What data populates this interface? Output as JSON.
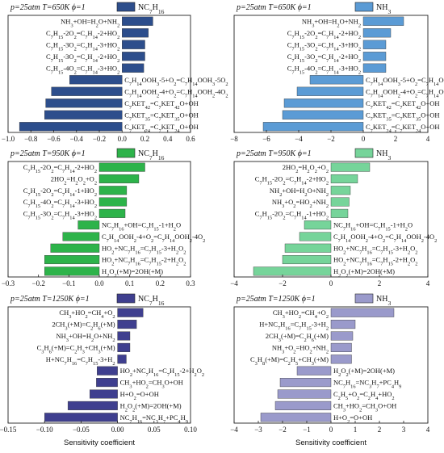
{
  "x_axis_label": "Sensitivity coefficient",
  "chart_data": [
    {
      "type": "bar",
      "orientation": "horizontal",
      "header": "p=25atm  T=650K  ϕ=1",
      "legend": "NC7H16",
      "color": "#2d4e8c",
      "xlim": [
        -1.0,
        0.6
      ],
      "xticks": [
        "-1.0",
        "-0.8",
        "-0.6",
        "-0.4",
        "-0.2",
        "0.0",
        "0.2",
        "0.4",
        "0.6"
      ],
      "xlabel": "",
      "categories": [
        "NH3+OH=H2O+NH2",
        "C7H15-2O2=C7H14-2+HO2",
        "C7H15-3O2=C7H14-3+HO2",
        "C7H15-3O2=C7H14-2+HO2",
        "C7H15-4O2=C7H14-3+HO2",
        "C7H14OOH3-5+O2=C7H14OOH3-5O2",
        "C7H14OOH2-4+O2=C7H14OOH2-4O2",
        "C7KET42=C7KET42O+OH",
        "C7KET35=C7KET35O+OH",
        "C7KET24=C7KET24O+OH"
      ],
      "values": [
        0.27,
        0.23,
        0.2,
        0.2,
        0.19,
        -0.46,
        -0.62,
        -0.67,
        -0.68,
        -0.9
      ]
    },
    {
      "type": "bar",
      "orientation": "horizontal",
      "header": "p=25atm  T=650K  ϕ=1",
      "legend": "NH3",
      "color": "#5b9bd5",
      "xlim": [
        -8,
        4
      ],
      "xticks": [
        "-8",
        "-6",
        "-4",
        "-2",
        "0",
        "2",
        "4"
      ],
      "xlabel": "",
      "categories": [
        "NH3+OH=H2O+NH2",
        "C7H15-2O2=C7H14-2+HO2",
        "C7H15-3O2=C7H14-3+HO2",
        "C7H15-3O2=C7H14-2+HO2",
        "C7H15-4O2=C7H14-3+HO2",
        "C7H14OOH3-5+O2=C7H14OOH3-5O2",
        "C7H14OOH2-4+O2=C7H14OOH2-4O2",
        "C7KET42=C7KET42O+OH",
        "C7KET35=C7KET35O+OH",
        "C7KET24=C7KET24O+OH"
      ],
      "values": [
        2.5,
        1.7,
        1.4,
        1.4,
        1.4,
        -3.3,
        -4.1,
        -4.9,
        -5.0,
        -6.2
      ]
    },
    {
      "type": "bar",
      "orientation": "horizontal",
      "header": "p=25atm  T=950K  ϕ=1",
      "legend": "NC7H16",
      "color": "#2db34a",
      "xlim": [
        -0.3,
        0.3
      ],
      "xticks": [
        "-0.3",
        "-0.2",
        "-0.1",
        "0.0",
        "0.1",
        "0.2",
        "0.3"
      ],
      "xlabel": "",
      "categories": [
        "C7H15-2O2=C7H14-2+HO2",
        "2HO2=H2O2+O2",
        "C7H15-2O2=C7H14-1+HO2",
        "C7H15-4O2=C7H14-3+HO2",
        "C7H15-3O2=C7H14-3+HO2",
        "NC7H16+OH=C7H15-1+H2O",
        "C7H14OOH2-4+O2=C7H14OOH2-4O2",
        "HO2+NC7H16=C7H15-3+H2O2",
        "HO2+NC7H16=C7H15-2+H2O2",
        "H2O2(+M)=2OH(+M)"
      ],
      "values": [
        0.15,
        0.13,
        0.09,
        0.09,
        0.085,
        -0.07,
        -0.12,
        -0.16,
        -0.18,
        -0.18
      ]
    },
    {
      "type": "bar",
      "orientation": "horizontal",
      "header": "p=25atm  T=950K  ϕ=1",
      "legend": "NH3",
      "color": "#76d49a",
      "xlim": [
        -4,
        4
      ],
      "xticks": [
        "-4",
        "-2",
        "0",
        "2",
        "4"
      ],
      "xlabel": "",
      "categories": [
        "2HO2=H2O2+O2",
        "C7H15-2O2=C7H14-2+HO2",
        "NH2+OH=H2O+NH2",
        "NH3+O2=HO2+NH2",
        "C7H15-2O2=C7H14-1+HO2",
        "NC7H16+OH=C7H15-1+H2O",
        "C7H14OOH2-4+O2=C7H14OOH2-4O2",
        "HO2+NC7H16=C7H15-3+H2O2",
        "HO2+NC7H16=C7H15-2+H2O2",
        "H2O2(+M)=2OH(+M)"
      ],
      "values": [
        1.6,
        1.1,
        0.8,
        0.75,
        0.7,
        -1.1,
        -1.3,
        -1.9,
        -2.0,
        -3.2
      ]
    },
    {
      "type": "bar",
      "orientation": "horizontal",
      "header": "p=25atm  T=1250K  ϕ=1",
      "legend": "NC7H16",
      "color": "#3f3f8f",
      "xlim": [
        -0.15,
        0.1
      ],
      "xticks": [
        "-0.15",
        "-0.10",
        "-0.05",
        "0.00",
        "0.05",
        "0.10"
      ],
      "xlabel": "Sensitivity coefficient",
      "categories": [
        "CH3+HO2=CH4+O2",
        "2CH3(+M)=C2H6(+M)",
        "NH3+OH=H2O+NH2",
        "C3H6(+M)=C2H3+CH3(+M)",
        "H+NC7H16=C7H15-3+H2",
        "HO2+NC7H16=C7H15-2+H2O2",
        "CH3+HO2=CH3O+OH",
        "H+O2=O+OH",
        "H2O2(+M)=2OH(+M)",
        "NC7H16=NC3H7+PC4H9"
      ],
      "values": [
        0.035,
        0.026,
        0.017,
        0.017,
        0.012,
        -0.028,
        -0.029,
        -0.038,
        -0.068,
        -0.1
      ]
    },
    {
      "type": "bar",
      "orientation": "horizontal",
      "header": "p=25atm  T=1250K  ϕ=1",
      "legend": "NH3",
      "color": "#9a9acb",
      "xlim": [
        -4,
        4
      ],
      "xticks": [
        "-4",
        "-3",
        "-2",
        "-1",
        "0",
        "1",
        "2",
        "3",
        "4"
      ],
      "xlabel": "Sensitivity coefficient",
      "categories": [
        "CH3+HO2=CH4+O2",
        "H+NC7H16=C7H15-3+H2",
        "2CH3(+M)=C2H6(+M)",
        "NH3+O2=HO2+NH2",
        "C3H8(+M)=C2H5+CH3(+M)",
        "H2O2(+M)=2OH(+M)",
        "NC7H16=NC3H7+PC4H9",
        "C2H5+O2=C2H4+HO2",
        "CH3+HO2=CH3O+OH",
        "H+O2=O+OH"
      ],
      "values": [
        2.6,
        1.0,
        0.9,
        0.85,
        0.85,
        -1.4,
        -2.1,
        -2.2,
        -2.3,
        -2.9
      ]
    }
  ]
}
